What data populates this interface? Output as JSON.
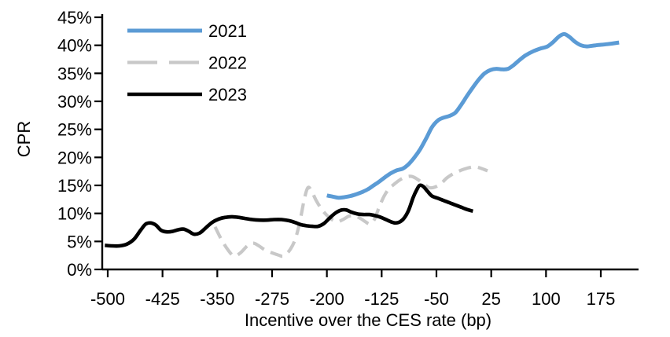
{
  "chart_data": {
    "type": "line",
    "title": "",
    "xlabel": "Incentive over the CES rate (bp)",
    "ylabel": "CPR",
    "xlim": [
      -500,
      225
    ],
    "ylim": [
      0,
      45
    ],
    "grid": false,
    "xticks": [
      -500,
      -425,
      -350,
      -275,
      -200,
      -125,
      -50,
      25,
      100,
      175
    ],
    "xtick_labels": [
      "-500",
      "-425",
      "-350",
      "-275",
      "-200",
      "-125",
      "-50",
      "25",
      "100",
      "175"
    ],
    "yticks": [
      0,
      5,
      10,
      15,
      20,
      25,
      30,
      35,
      40,
      45
    ],
    "ytick_labels": [
      "0%",
      "5%",
      "10%",
      "15%",
      "20%",
      "25%",
      "30%",
      "35%",
      "40%",
      "45%"
    ],
    "legend": {
      "position": "top-left-inside",
      "entries": [
        "2021",
        "2022",
        "2023"
      ]
    },
    "series": [
      {
        "name": "2021",
        "color": "#5B9BD5",
        "dash": "solid",
        "x": [
          -200,
          -192,
          -184,
          -176,
          -168,
          -160,
          -152,
          -144,
          -136,
          -128,
          -120,
          -112,
          -104,
          -96,
          -88,
          -80,
          -72,
          -64,
          -56,
          -48,
          -40,
          -32,
          -24,
          -16,
          -8,
          0,
          8,
          16,
          24,
          32,
          40,
          48,
          56,
          64,
          72,
          82,
          92,
          102,
          110,
          118,
          125,
          132,
          140,
          148,
          156,
          168,
          184,
          200
        ],
        "values": [
          13.2,
          13.0,
          12.8,
          12.9,
          13.1,
          13.4,
          13.8,
          14.3,
          15.0,
          15.7,
          16.5,
          17.2,
          17.7,
          18.0,
          18.8,
          20.0,
          21.5,
          23.4,
          25.4,
          26.6,
          27.1,
          27.4,
          28.0,
          29.4,
          31.0,
          32.5,
          33.9,
          35.0,
          35.6,
          35.8,
          35.7,
          35.8,
          36.5,
          37.4,
          38.2,
          38.9,
          39.4,
          39.8,
          40.6,
          41.6,
          42.0,
          41.5,
          40.6,
          40.0,
          39.8,
          40.0,
          40.2,
          40.5
        ]
      },
      {
        "name": "2022",
        "color": "#C8C8C8",
        "dash": "dashed",
        "x": [
          -353,
          -345,
          -336,
          -327,
          -318,
          -309,
          -301,
          -293,
          -285,
          -276,
          -267,
          -259,
          -250,
          -243,
          -237,
          -231,
          -226,
          -221,
          -215,
          -208,
          -201,
          -194,
          -186,
          -178,
          -170,
          -162,
          -154,
          -147,
          -141,
          -135,
          -129,
          -122,
          -115,
          -108,
          -100,
          -92,
          -84,
          -76,
          -68,
          -60,
          -52,
          -44,
          -36,
          -28,
          -20,
          -12,
          -4,
          4,
          12,
          20
        ],
        "values": [
          7.6,
          5.5,
          3.6,
          2.4,
          3.0,
          4.2,
          4.7,
          4.2,
          3.5,
          3.0,
          2.6,
          2.4,
          3.6,
          5.5,
          8.5,
          12.5,
          14.6,
          14.0,
          12.4,
          10.9,
          9.8,
          9.0,
          8.5,
          8.9,
          9.5,
          9.6,
          9.1,
          8.5,
          8.1,
          8.9,
          10.9,
          13.0,
          14.4,
          15.2,
          16.0,
          16.5,
          16.6,
          16.1,
          15.3,
          14.6,
          14.7,
          15.3,
          16.3,
          17.0,
          17.5,
          17.9,
          18.2,
          18.3,
          18.0,
          17.6
        ]
      },
      {
        "name": "2023",
        "color": "#000000",
        "dash": "solid",
        "x": [
          -504,
          -494,
          -484,
          -474,
          -464,
          -455,
          -448,
          -441,
          -434,
          -427,
          -419,
          -411,
          -403,
          -396,
          -389,
          -382,
          -374,
          -366,
          -357,
          -348,
          -339,
          -330,
          -321,
          -312,
          -302,
          -292,
          -282,
          -272,
          -262,
          -252,
          -244,
          -236,
          -228,
          -220,
          -212,
          -204,
          -196,
          -188,
          -180,
          -173,
          -166,
          -158,
          -150,
          -142,
          -134,
          -126,
          -119,
          -112,
          -106,
          -100,
          -94,
          -88,
          -82,
          -77,
          -73,
          -68,
          -62,
          -56,
          -48,
          -40,
          -32,
          -24,
          -16,
          -8,
          0
        ],
        "values": [
          4.3,
          4.2,
          4.2,
          4.5,
          5.4,
          7.0,
          8.1,
          8.3,
          7.9,
          7.0,
          6.7,
          6.8,
          7.1,
          7.2,
          6.8,
          6.3,
          6.5,
          7.4,
          8.4,
          9.0,
          9.3,
          9.4,
          9.3,
          9.1,
          8.9,
          8.8,
          8.8,
          8.9,
          8.9,
          8.7,
          8.4,
          8.0,
          7.8,
          7.7,
          7.7,
          8.2,
          9.2,
          10.1,
          10.6,
          10.6,
          10.2,
          9.9,
          9.8,
          9.8,
          9.6,
          9.3,
          8.9,
          8.5,
          8.3,
          8.5,
          9.2,
          10.6,
          12.8,
          14.2,
          15.0,
          14.8,
          13.9,
          13.1,
          12.7,
          12.3,
          11.9,
          11.5,
          11.1,
          10.7,
          10.4
        ]
      }
    ]
  }
}
